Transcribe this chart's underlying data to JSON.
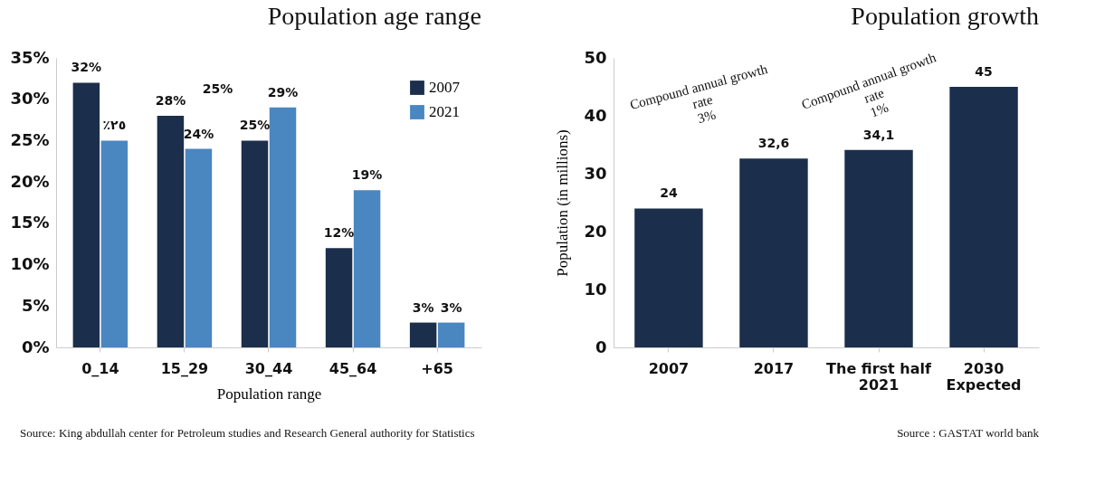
{
  "chart_data": [
    {
      "type": "bar",
      "title": "Population age range",
      "xlabel": "Population range",
      "categories": [
        "0_14",
        "15_29",
        "30_44",
        "45_64",
        "+65"
      ],
      "series": [
        {
          "name": "2007",
          "color": "#1b2e4b",
          "values": [
            32,
            28,
            25,
            12,
            3
          ],
          "value_labels": [
            "32%",
            "28%",
            "25%",
            "12%",
            "3%"
          ]
        },
        {
          "name": "2021",
          "color": "#4a86c0",
          "values": [
            25,
            24,
            29,
            19,
            3
          ],
          "value_labels": [
            "٪٢٥",
            "24%",
            "29%",
            "19%",
            "3%"
          ]
        }
      ],
      "ylim": [
        0,
        35
      ],
      "yticks": [
        {
          "value": 0,
          "label": "0%"
        },
        {
          "value": 5,
          "label": "5%"
        },
        {
          "value": 10,
          "label": "10%"
        },
        {
          "value": 15,
          "label": "15%"
        },
        {
          "value": 20,
          "label": "20%"
        },
        {
          "value": 25,
          "label": "25%"
        },
        {
          "value": 30,
          "label": "30%"
        },
        {
          "value": 35,
          "label": "35%"
        }
      ],
      "legend": "top right",
      "annotations": [
        "25%",
        "Source: King abdullah center for Petroleum studies and Research General authority for Statistics"
      ]
    },
    {
      "type": "bar",
      "title": "Population growth",
      "ylabel": "Population (in millions)",
      "categories": [
        "2007",
        "2017",
        "The first half\n2021",
        "2030\nExpected"
      ],
      "values": [
        24,
        32.6,
        34.1,
        45
      ],
      "value_labels": [
        "24",
        "32,6",
        "34,1",
        "45"
      ],
      "color": "#1b2e4b",
      "ylim": [
        0,
        50
      ],
      "yticks": [
        0,
        10,
        20,
        30,
        40,
        50
      ],
      "annotations": [
        "Compound annual growth\nrate\n3%",
        "Compound annual growth\nrate\n1%",
        "Source : GASTAT world bank"
      ]
    }
  ]
}
